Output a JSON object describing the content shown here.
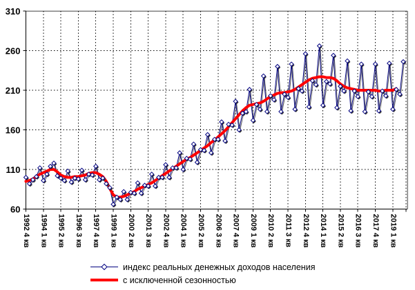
{
  "chart_data": {
    "type": "line",
    "title": "",
    "xlabel": "",
    "ylabel": "",
    "ylim": [
      60,
      310
    ],
    "y_ticks": [
      60,
      110,
      160,
      210,
      260,
      310
    ],
    "grid": "dashed",
    "legend_position": "bottom",
    "x_tick_every": 5,
    "x_tick_labels": [
      "1992 4 кв",
      "1994 1 кв",
      "1995 2 кв",
      "1996 3 кв",
      "1997 4 кв",
      "1999 1 кв",
      "2000 2 кв",
      "2001 3 кв",
      "2002 4 кв",
      "2004 1 кв",
      "2005 2 кв",
      "2006 3 кв",
      "2007 4 кв",
      "2009 1 кв",
      "2010 2 кв",
      "2011 3 кв",
      "2012 4 кв",
      "2014 1 кв",
      "2015 2 кв",
      "2016 3 кв",
      "2017 4 кв",
      "2019 1 кв"
    ],
    "categories": [
      "1992 4 кв",
      "1993 1 кв",
      "1993 2 кв",
      "1993 3 кв",
      "1993 4 кв",
      "1994 1 кв",
      "1994 2 кв",
      "1994 3 кв",
      "1994 4 кв",
      "1995 1 кв",
      "1995 2 кв",
      "1995 3 кв",
      "1995 4 кв",
      "1996 1 кв",
      "1996 2 кв",
      "1996 3 кв",
      "1996 4 кв",
      "1997 1 кв",
      "1997 2 кв",
      "1997 3 кв",
      "1997 4 кв",
      "1998 1 кв",
      "1998 2 кв",
      "1998 3 кв",
      "1998 4 кв",
      "1999 1 кв",
      "1999 2 кв",
      "1999 3 кв",
      "1999 4 кв",
      "2000 1 кв",
      "2000 2 кв",
      "2000 3 кв",
      "2000 4 кв",
      "2001 1 кв",
      "2001 2 кв",
      "2001 3 кв",
      "2001 4 кв",
      "2002 1 кв",
      "2002 2 кв",
      "2002 3 кв",
      "2002 4 кв",
      "2003 1 кв",
      "2003 2 кв",
      "2003 3 кв",
      "2003 4 кв",
      "2004 1 кв",
      "2004 2 кв",
      "2004 3 кв",
      "2004 4 кв",
      "2005 1 кв",
      "2005 2 кв",
      "2005 3 кв",
      "2005 4 кв",
      "2006 1 кв",
      "2006 2 кв",
      "2006 3 кв",
      "2006 4 кв",
      "2007 1 кв",
      "2007 2 кв",
      "2007 3 кв",
      "2007 4 кв",
      "2008 1 кв",
      "2008 2 кв",
      "2008 3 кв",
      "2008 4 кв",
      "2009 1 кв",
      "2009 2 кв",
      "2009 3 кв",
      "2009 4 кв",
      "2010 1 кв",
      "2010 2 кв",
      "2010 3 кв",
      "2010 4 кв",
      "2011 1 кв",
      "2011 2 кв",
      "2011 3 кв",
      "2011 4 кв",
      "2012 1 кв",
      "2012 2 кв",
      "2012 3 кв",
      "2012 4 кв",
      "2013 1 кв",
      "2013 2 кв",
      "2013 3 кв",
      "2013 4 кв",
      "2014 1 кв",
      "2014 2 кв",
      "2014 3 кв",
      "2014 4 кв",
      "2015 1 кв",
      "2015 2 кв",
      "2015 3 кв",
      "2015 4 кв",
      "2016 1 кв",
      "2016 2 кв",
      "2016 3 кв",
      "2016 4 кв",
      "2017 1 кв",
      "2017 2 кв",
      "2017 3 кв",
      "2017 4 кв",
      "2018 1 кв",
      "2018 2 кв",
      "2018 3 кв",
      "2018 4 кв",
      "2019 1 кв",
      "2019 2 кв",
      "2019 3 кв",
      "2019 4 кв"
    ],
    "series": [
      {
        "name": "индекс реальных денежных доходов населения",
        "color": "#000080",
        "marker": "diamond",
        "values": [
          100,
          92,
          97,
          101,
          112,
          96,
          104,
          114,
          118,
          102,
          99,
          96,
          108,
          94,
          99,
          98,
          109,
          97,
          104,
          103,
          114,
          97,
          99,
          92,
          87,
          66,
          75,
          72,
          82,
          72,
          81,
          80,
          93,
          80,
          90,
          89,
          104,
          89,
          100,
          100,
          116,
          100,
          112,
          112,
          131,
          110,
          124,
          123,
          142,
          119,
          135,
          134,
          154,
          131,
          148,
          148,
          170,
          146,
          167,
          166,
          196,
          160,
          181,
          183,
          211,
          172,
          192,
          186,
          228,
          183,
          203,
          198,
          240,
          183,
          205,
          201,
          243,
          186,
          212,
          209,
          256,
          189,
          222,
          217,
          266,
          191,
          221,
          218,
          254,
          188,
          215,
          209,
          247,
          184,
          209,
          202,
          243,
          183,
          208,
          202,
          243,
          184,
          209,
          203,
          244,
          186,
          211,
          205,
          246
        ]
      },
      {
        "name": "с исключенной сезонностью",
        "color": "#FF0000",
        "line_width": 4,
        "values": [
          95,
          96,
          98,
          101,
          104,
          106,
          108,
          110,
          110,
          107,
          103,
          101,
          100,
          100,
          101,
          101,
          102,
          103,
          105,
          106,
          106,
          104,
          101,
          95,
          86,
          78,
          75,
          75,
          76,
          78,
          80,
          82,
          85,
          87,
          89,
          91,
          93,
          96,
          99,
          102,
          105,
          108,
          111,
          114,
          117,
          120,
          123,
          125,
          128,
          131,
          134,
          137,
          140,
          144,
          147,
          151,
          155,
          159,
          164,
          169,
          174,
          179,
          184,
          188,
          191,
          192,
          193,
          194,
          196,
          199,
          202,
          204,
          206,
          207,
          207,
          208,
          209,
          211,
          214,
          217,
          220,
          223,
          225,
          226,
          227,
          227,
          226,
          226,
          225,
          222,
          218,
          215,
          213,
          212,
          211,
          210,
          210,
          210,
          210,
          210,
          210,
          209,
          209,
          210,
          210,
          210,
          212,
          null,
          null
        ]
      }
    ]
  }
}
